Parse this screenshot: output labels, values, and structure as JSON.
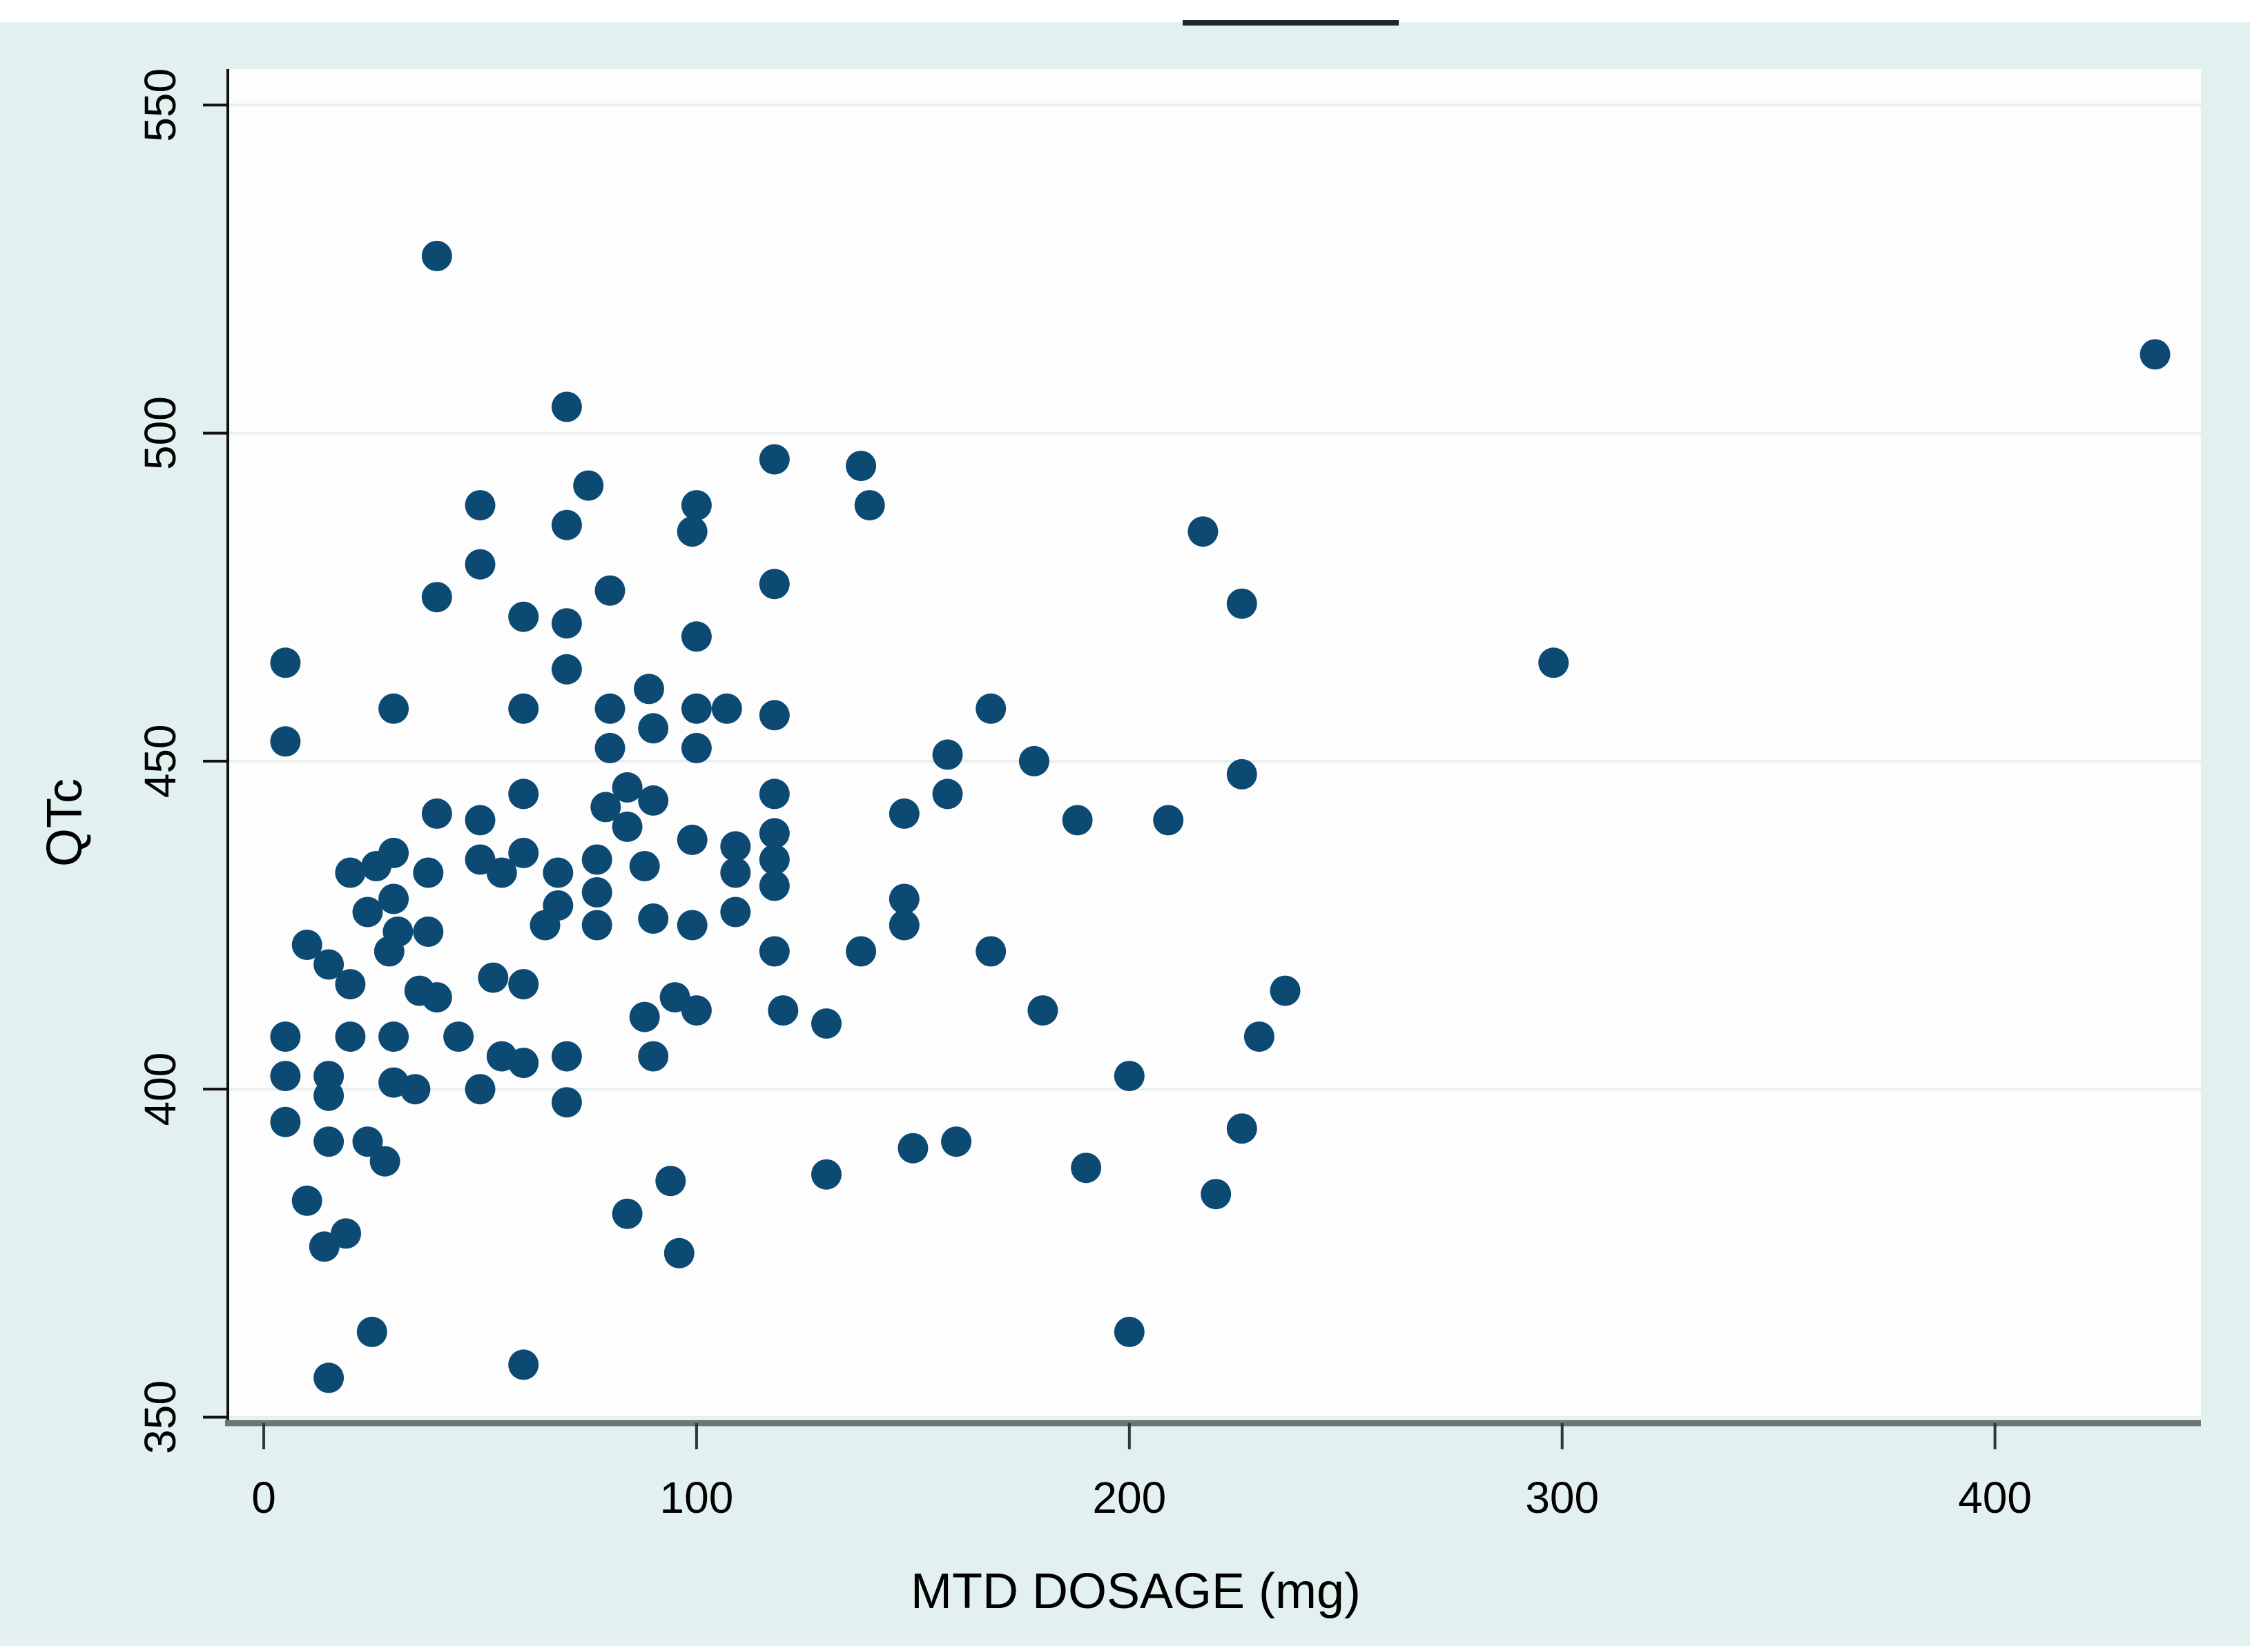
{
  "figure": {
    "ylabel": "QTc",
    "xlabel": "MTD DOSAGE (mg)"
  },
  "colors": {
    "outer_background": "#ffffff",
    "graph_background": "#e2f0f0",
    "plot_background": "#fdfdfd",
    "gridline": "#e9eeee",
    "marker": "#0d4a73",
    "left_spine": "#111111",
    "bottom_spine": "#6b7676",
    "tick": "#2f3737",
    "text": "#000000",
    "top_artifact": "#20262b"
  },
  "chart_data": {
    "type": "scatter",
    "title": "",
    "xlabel": "MTD DOSAGE (mg)",
    "ylabel": "QTc",
    "x_ticks": [
      0,
      100,
      200,
      300,
      400
    ],
    "y_ticks": [
      350,
      400,
      450,
      500,
      550
    ],
    "xlim": [
      -8.3,
      447.6
    ],
    "ylim": [
      349.1,
      555.5
    ],
    "grid": "horizontal-only",
    "legend": "none",
    "points": [
      [
        5,
        465
      ],
      [
        5,
        453
      ],
      [
        5,
        408
      ],
      [
        5,
        402
      ],
      [
        5,
        395
      ],
      [
        10,
        422
      ],
      [
        10,
        383
      ],
      [
        14,
        376
      ],
      [
        15,
        419
      ],
      [
        15,
        402
      ],
      [
        15,
        399
      ],
      [
        15,
        392
      ],
      [
        15,
        356
      ],
      [
        19,
        378
      ],
      [
        20,
        416
      ],
      [
        20,
        408
      ],
      [
        20,
        433
      ],
      [
        24,
        427
      ],
      [
        24,
        392
      ],
      [
        25,
        363
      ],
      [
        26,
        434
      ],
      [
        28,
        389
      ],
      [
        29,
        421
      ],
      [
        30,
        458
      ],
      [
        30,
        436
      ],
      [
        30,
        429
      ],
      [
        30,
        408
      ],
      [
        30,
        401
      ],
      [
        31,
        424
      ],
      [
        35,
        400
      ],
      [
        36,
        415
      ],
      [
        38,
        433
      ],
      [
        38,
        424
      ],
      [
        40,
        527
      ],
      [
        40,
        475
      ],
      [
        40,
        442
      ],
      [
        40,
        414
      ],
      [
        45,
        408
      ],
      [
        50,
        489
      ],
      [
        50,
        480
      ],
      [
        50,
        441
      ],
      [
        50,
        435
      ],
      [
        50,
        400
      ],
      [
        53,
        417
      ],
      [
        55,
        433
      ],
      [
        55,
        405
      ],
      [
        60,
        472
      ],
      [
        60,
        458
      ],
      [
        60,
        445
      ],
      [
        60,
        436
      ],
      [
        60,
        416
      ],
      [
        60,
        404
      ],
      [
        60,
        358
      ],
      [
        65,
        425
      ],
      [
        68,
        433
      ],
      [
        68,
        428
      ],
      [
        70,
        504
      ],
      [
        70,
        486
      ],
      [
        70,
        471
      ],
      [
        70,
        464
      ],
      [
        70,
        405
      ],
      [
        70,
        398
      ],
      [
        75,
        492
      ],
      [
        77,
        435
      ],
      [
        77,
        430
      ],
      [
        77,
        425
      ],
      [
        79,
        443
      ],
      [
        80,
        476
      ],
      [
        80,
        458
      ],
      [
        80,
        452
      ],
      [
        84,
        446
      ],
      [
        84,
        440
      ],
      [
        84,
        381
      ],
      [
        88,
        434
      ],
      [
        88,
        411
      ],
      [
        89,
        461
      ],
      [
        90,
        455
      ],
      [
        90,
        444
      ],
      [
        90,
        426
      ],
      [
        90,
        405
      ],
      [
        94,
        386
      ],
      [
        95,
        414
      ],
      [
        96,
        375
      ],
      [
        99,
        438
      ],
      [
        99,
        425
      ],
      [
        99,
        485
      ],
      [
        100,
        412
      ],
      [
        100,
        489
      ],
      [
        100,
        469
      ],
      [
        100,
        458
      ],
      [
        100,
        452
      ],
      [
        107,
        458
      ],
      [
        109,
        437
      ],
      [
        109,
        433
      ],
      [
        109,
        427
      ],
      [
        118,
        496
      ],
      [
        118,
        477
      ],
      [
        118,
        457
      ],
      [
        118,
        445
      ],
      [
        118,
        439
      ],
      [
        118,
        435
      ],
      [
        118,
        431
      ],
      [
        118,
        421
      ],
      [
        120,
        412
      ],
      [
        130,
        410
      ],
      [
        130,
        387
      ],
      [
        138,
        495
      ],
      [
        140,
        489
      ],
      [
        138,
        421
      ],
      [
        148,
        442
      ],
      [
        148,
        429
      ],
      [
        148,
        425
      ],
      [
        150,
        391
      ],
      [
        158,
        451
      ],
      [
        158,
        445
      ],
      [
        160,
        392
      ],
      [
        168,
        458
      ],
      [
        168,
        421
      ],
      [
        178,
        450
      ],
      [
        180,
        412
      ],
      [
        188,
        441
      ],
      [
        190,
        388
      ],
      [
        200,
        402
      ],
      [
        200,
        363
      ],
      [
        209,
        441
      ],
      [
        217,
        485
      ],
      [
        220,
        384
      ],
      [
        226,
        474
      ],
      [
        226,
        448
      ],
      [
        226,
        394
      ],
      [
        230,
        408
      ],
      [
        236,
        415
      ],
      [
        298,
        465
      ],
      [
        437,
        512
      ]
    ]
  }
}
